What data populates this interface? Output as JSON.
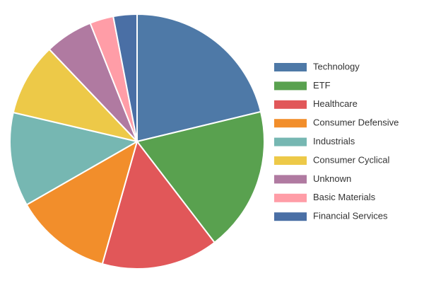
{
  "chart_data": {
    "type": "pie",
    "categories": [
      "Technology",
      "ETF",
      "Healthcare",
      "Consumer Defensive",
      "Industrials",
      "Consumer Cyclical",
      "Unknown",
      "Basic Materials",
      "Financial Services"
    ],
    "values": [
      21.2,
      18.3,
      14.8,
      12.3,
      11.9,
      9.2,
      6.1,
      3.0,
      3.0
    ],
    "colors": [
      "#4e79a7",
      "#59a14f",
      "#e15759",
      "#f28e2b",
      "#76b7b2",
      "#edc948",
      "#b07aa1",
      "#ff9da7",
      "#4a6fa5"
    ],
    "legend": "right"
  }
}
